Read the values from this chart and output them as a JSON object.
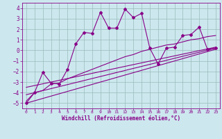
{
  "title": "",
  "xlabel": "Windchill (Refroidissement éolien,°C)",
  "xlim": [
    -0.5,
    23.5
  ],
  "ylim": [
    -5.5,
    4.5
  ],
  "yticks": [
    -5,
    -4,
    -3,
    -2,
    -1,
    0,
    1,
    2,
    3,
    4
  ],
  "xticks": [
    0,
    1,
    2,
    3,
    4,
    5,
    6,
    7,
    8,
    9,
    10,
    11,
    12,
    13,
    14,
    15,
    16,
    17,
    18,
    19,
    20,
    21,
    22,
    23
  ],
  "background_color": "#cce8ee",
  "line_color": "#880088",
  "grid_color": "#99bbbb",
  "line1_x": [
    0,
    1,
    2,
    3,
    4,
    5,
    6,
    7,
    8,
    9,
    10,
    11,
    12,
    13,
    14,
    15,
    16,
    17,
    18,
    19,
    20,
    21,
    22,
    23
  ],
  "line1_y": [
    -5.0,
    -4.0,
    -2.1,
    -3.1,
    -3.2,
    -1.8,
    0.6,
    1.7,
    1.6,
    3.6,
    2.1,
    2.1,
    3.9,
    3.1,
    3.5,
    0.2,
    -1.3,
    0.2,
    0.3,
    1.4,
    1.5,
    2.2,
    0.1,
    0.2
  ],
  "line2_x": [
    0,
    1,
    2,
    3,
    4,
    5,
    6,
    7,
    8,
    9,
    10,
    11,
    12,
    13,
    14,
    15,
    16,
    17,
    18,
    19,
    20,
    21,
    22,
    23
  ],
  "line2_y": [
    -4.8,
    -4.0,
    -3.8,
    -3.2,
    -3.1,
    -2.7,
    -2.4,
    -2.1,
    -1.8,
    -1.5,
    -1.2,
    -0.9,
    -0.6,
    -0.4,
    -0.1,
    0.1,
    0.3,
    0.5,
    0.6,
    0.8,
    1.0,
    1.1,
    1.3,
    1.4
  ],
  "line3_x": [
    0,
    23
  ],
  "line3_y": [
    -5.0,
    0.1
  ],
  "line4_x": [
    0,
    23
  ],
  "line4_y": [
    -4.2,
    0.2
  ],
  "line5_x": [
    0,
    23
  ],
  "line5_y": [
    -3.5,
    0.3
  ]
}
